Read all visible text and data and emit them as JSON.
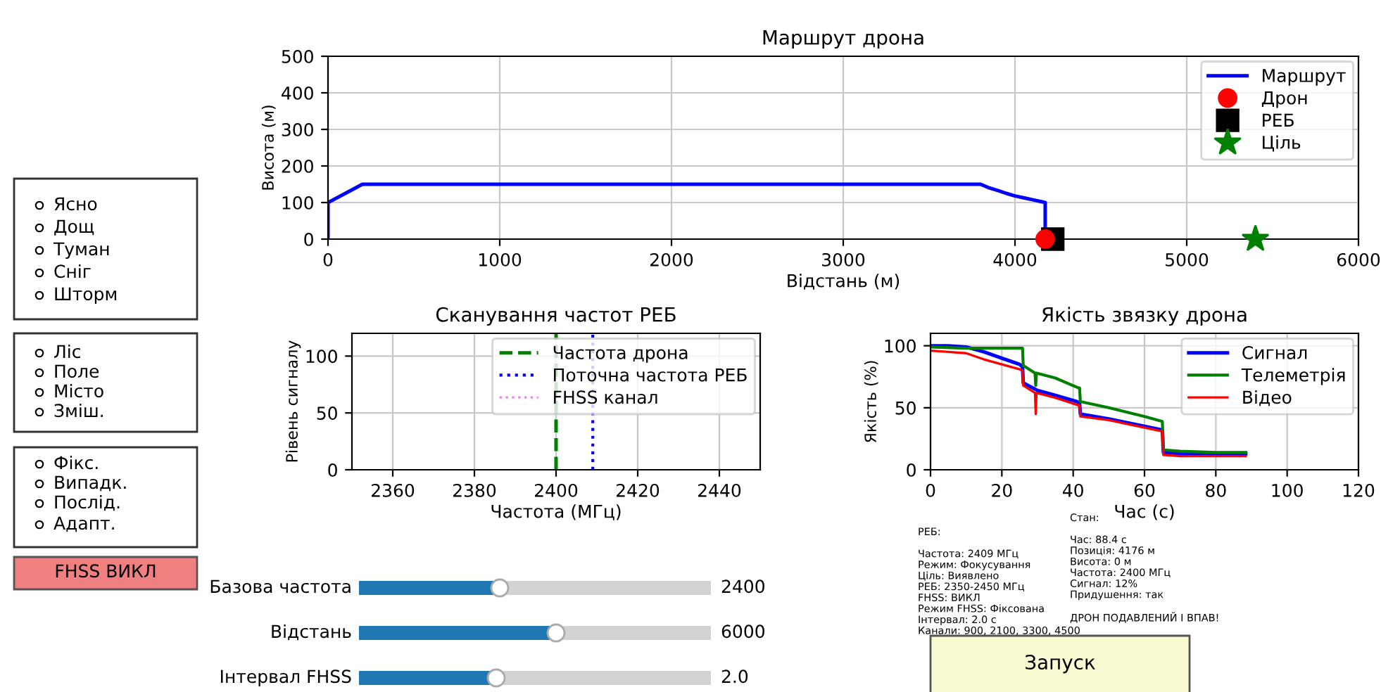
{
  "chart_data": [
    {
      "type": "line",
      "title": "Маршрут дрона",
      "xlabel": "Відстань (м)",
      "ylabel": "Висота (м)",
      "xlim": [
        0,
        6000
      ],
      "ylim": [
        0,
        500
      ],
      "xticks": [
        0,
        1000,
        2000,
        3000,
        4000,
        5000,
        6000
      ],
      "yticks": [
        0,
        100,
        200,
        300,
        400,
        500
      ],
      "grid": true,
      "legend": "top right",
      "series": [
        {
          "name": "Маршрут",
          "type": "line",
          "color": "#0000ff",
          "line_style": "solid",
          "marker": "none",
          "x": [
            0,
            0,
            200,
            3800,
            3850,
            3900,
            3950,
            4000,
            4050,
            4100,
            4176,
            4176
          ],
          "values": [
            0,
            100,
            150,
            150,
            140,
            133,
            125,
            118,
            113,
            108,
            100,
            0
          ]
        },
        {
          "name": "Дрон",
          "type": "scatter",
          "color": "#ff0000",
          "marker": "circle",
          "x": [
            4176
          ],
          "values": [
            0
          ]
        },
        {
          "name": "РЕБ",
          "type": "scatter",
          "color": "#000000",
          "marker": "square",
          "x": [
            4220
          ],
          "values": [
            0
          ]
        },
        {
          "name": "Ціль",
          "type": "scatter",
          "color": "#008000",
          "marker": "star",
          "x": [
            5400
          ],
          "values": [
            0
          ]
        }
      ]
    },
    {
      "type": "line",
      "title": "Сканування частот РЕБ",
      "xlabel": "Частота (МГц)",
      "ylabel": "Рівень сигналу",
      "xlim": [
        2350,
        2450
      ],
      "ylim": [
        0,
        120
      ],
      "xticks": [
        2360,
        2380,
        2400,
        2420,
        2440
      ],
      "yticks": [
        0,
        50,
        100
      ],
      "grid": true,
      "legend": "top right",
      "series": [
        {
          "name": "Частота дрона",
          "type": "line",
          "color": "#008000",
          "line_style": "dashed",
          "x": [
            2400,
            2400
          ],
          "values": [
            0,
            120
          ]
        },
        {
          "name": "Поточна частота РЕБ",
          "type": "line",
          "color": "#0000ff",
          "line_style": "dotted",
          "x": [
            2409,
            2409
          ],
          "values": [
            0,
            120
          ]
        },
        {
          "name": "FHSS канал",
          "type": "line",
          "color": "#ee82ee",
          "line_style": "dotted"
        }
      ]
    },
    {
      "type": "line",
      "title": "Якість звязку дрона",
      "xlabel": "Час (с)",
      "ylabel": "Якість (%)",
      "xlim": [
        0,
        120
      ],
      "ylim": [
        0,
        110
      ],
      "xticks": [
        0,
        20,
        40,
        60,
        80,
        100,
        120
      ],
      "yticks": [
        0,
        50,
        100
      ],
      "grid": true,
      "legend": "top right",
      "series": [
        {
          "name": "Сигнал",
          "type": "line",
          "color": "#0000ff",
          "line_style": "solid",
          "x": [
            0,
            5,
            10,
            15,
            20,
            25,
            25.8,
            26,
            30,
            35,
            41,
            41.8,
            42,
            50,
            55,
            60,
            65,
            65.3,
            70,
            80,
            88.4
          ],
          "values": [
            100,
            100,
            99,
            95,
            90,
            85,
            83,
            70,
            64,
            60,
            55,
            54,
            45,
            41,
            38,
            35,
            32,
            14,
            13,
            13,
            13
          ]
        },
        {
          "name": "Телеметрія",
          "type": "line",
          "color": "#008000",
          "line_style": "solid",
          "x": [
            0,
            10,
            20,
            25.8,
            26,
            29.3,
            29.5,
            29.7,
            35,
            41.5,
            41.8,
            42,
            50,
            60,
            65,
            65.3,
            70,
            80,
            88.4
          ],
          "values": [
            99,
            98,
            98,
            98,
            84,
            78,
            68,
            78,
            74,
            66,
            66,
            55,
            50,
            43,
            39,
            16,
            15,
            14,
            14
          ]
        },
        {
          "name": "Відео",
          "type": "line",
          "color": "#ff0000",
          "line_style": "solid",
          "x": [
            0,
            5,
            10,
            15,
            20,
            25,
            25.8,
            26,
            29.3,
            29.5,
            29.7,
            35,
            41.5,
            41.8,
            42,
            50,
            60,
            65,
            65.3,
            70,
            80,
            88.4
          ],
          "values": [
            96,
            95,
            94,
            89,
            85,
            81,
            80,
            68,
            62,
            45,
            62,
            58,
            52,
            52,
            43,
            40,
            34,
            31,
            12,
            11,
            11,
            11
          ]
        }
      ]
    },
    {
      "type": "other",
      "annotations": [
        "Ясно",
        "Дощ",
        "Туман",
        "Сніг",
        "Шторм",
        "Ліс",
        "Поле",
        "Місто",
        "Зміш.",
        "Фікс.",
        "Випадк.",
        "Послід.",
        "Адапт.",
        "FHSS ВИКЛ",
        "Базова частота",
        "2400",
        "Відстань",
        "6000",
        "Інтервал FHSS",
        "2.0",
        "РЕБ:\n\nЧастота: 2409 МГц\nРежим: Фокусування\nЦіль: Виявлено\nРЕБ: 2350-2450 МГц\nFHSS: ВИКЛ\nРежим FHSS: Фіксована\nІнтервал: 2.0 с\nКанали: 900, 2100, 3300, 4500",
        "Стан:\n\nЧас: 88.4 с\nПозиція: 4176 м\nВисота: 0 м\nЧастота: 2400 МГц\nСигнал: 12%\nПридушення: так\n\nДРОН ПОДАВЛЕНИЙ І ВПАВ!",
        "Запуск"
      ]
    }
  ]
}
